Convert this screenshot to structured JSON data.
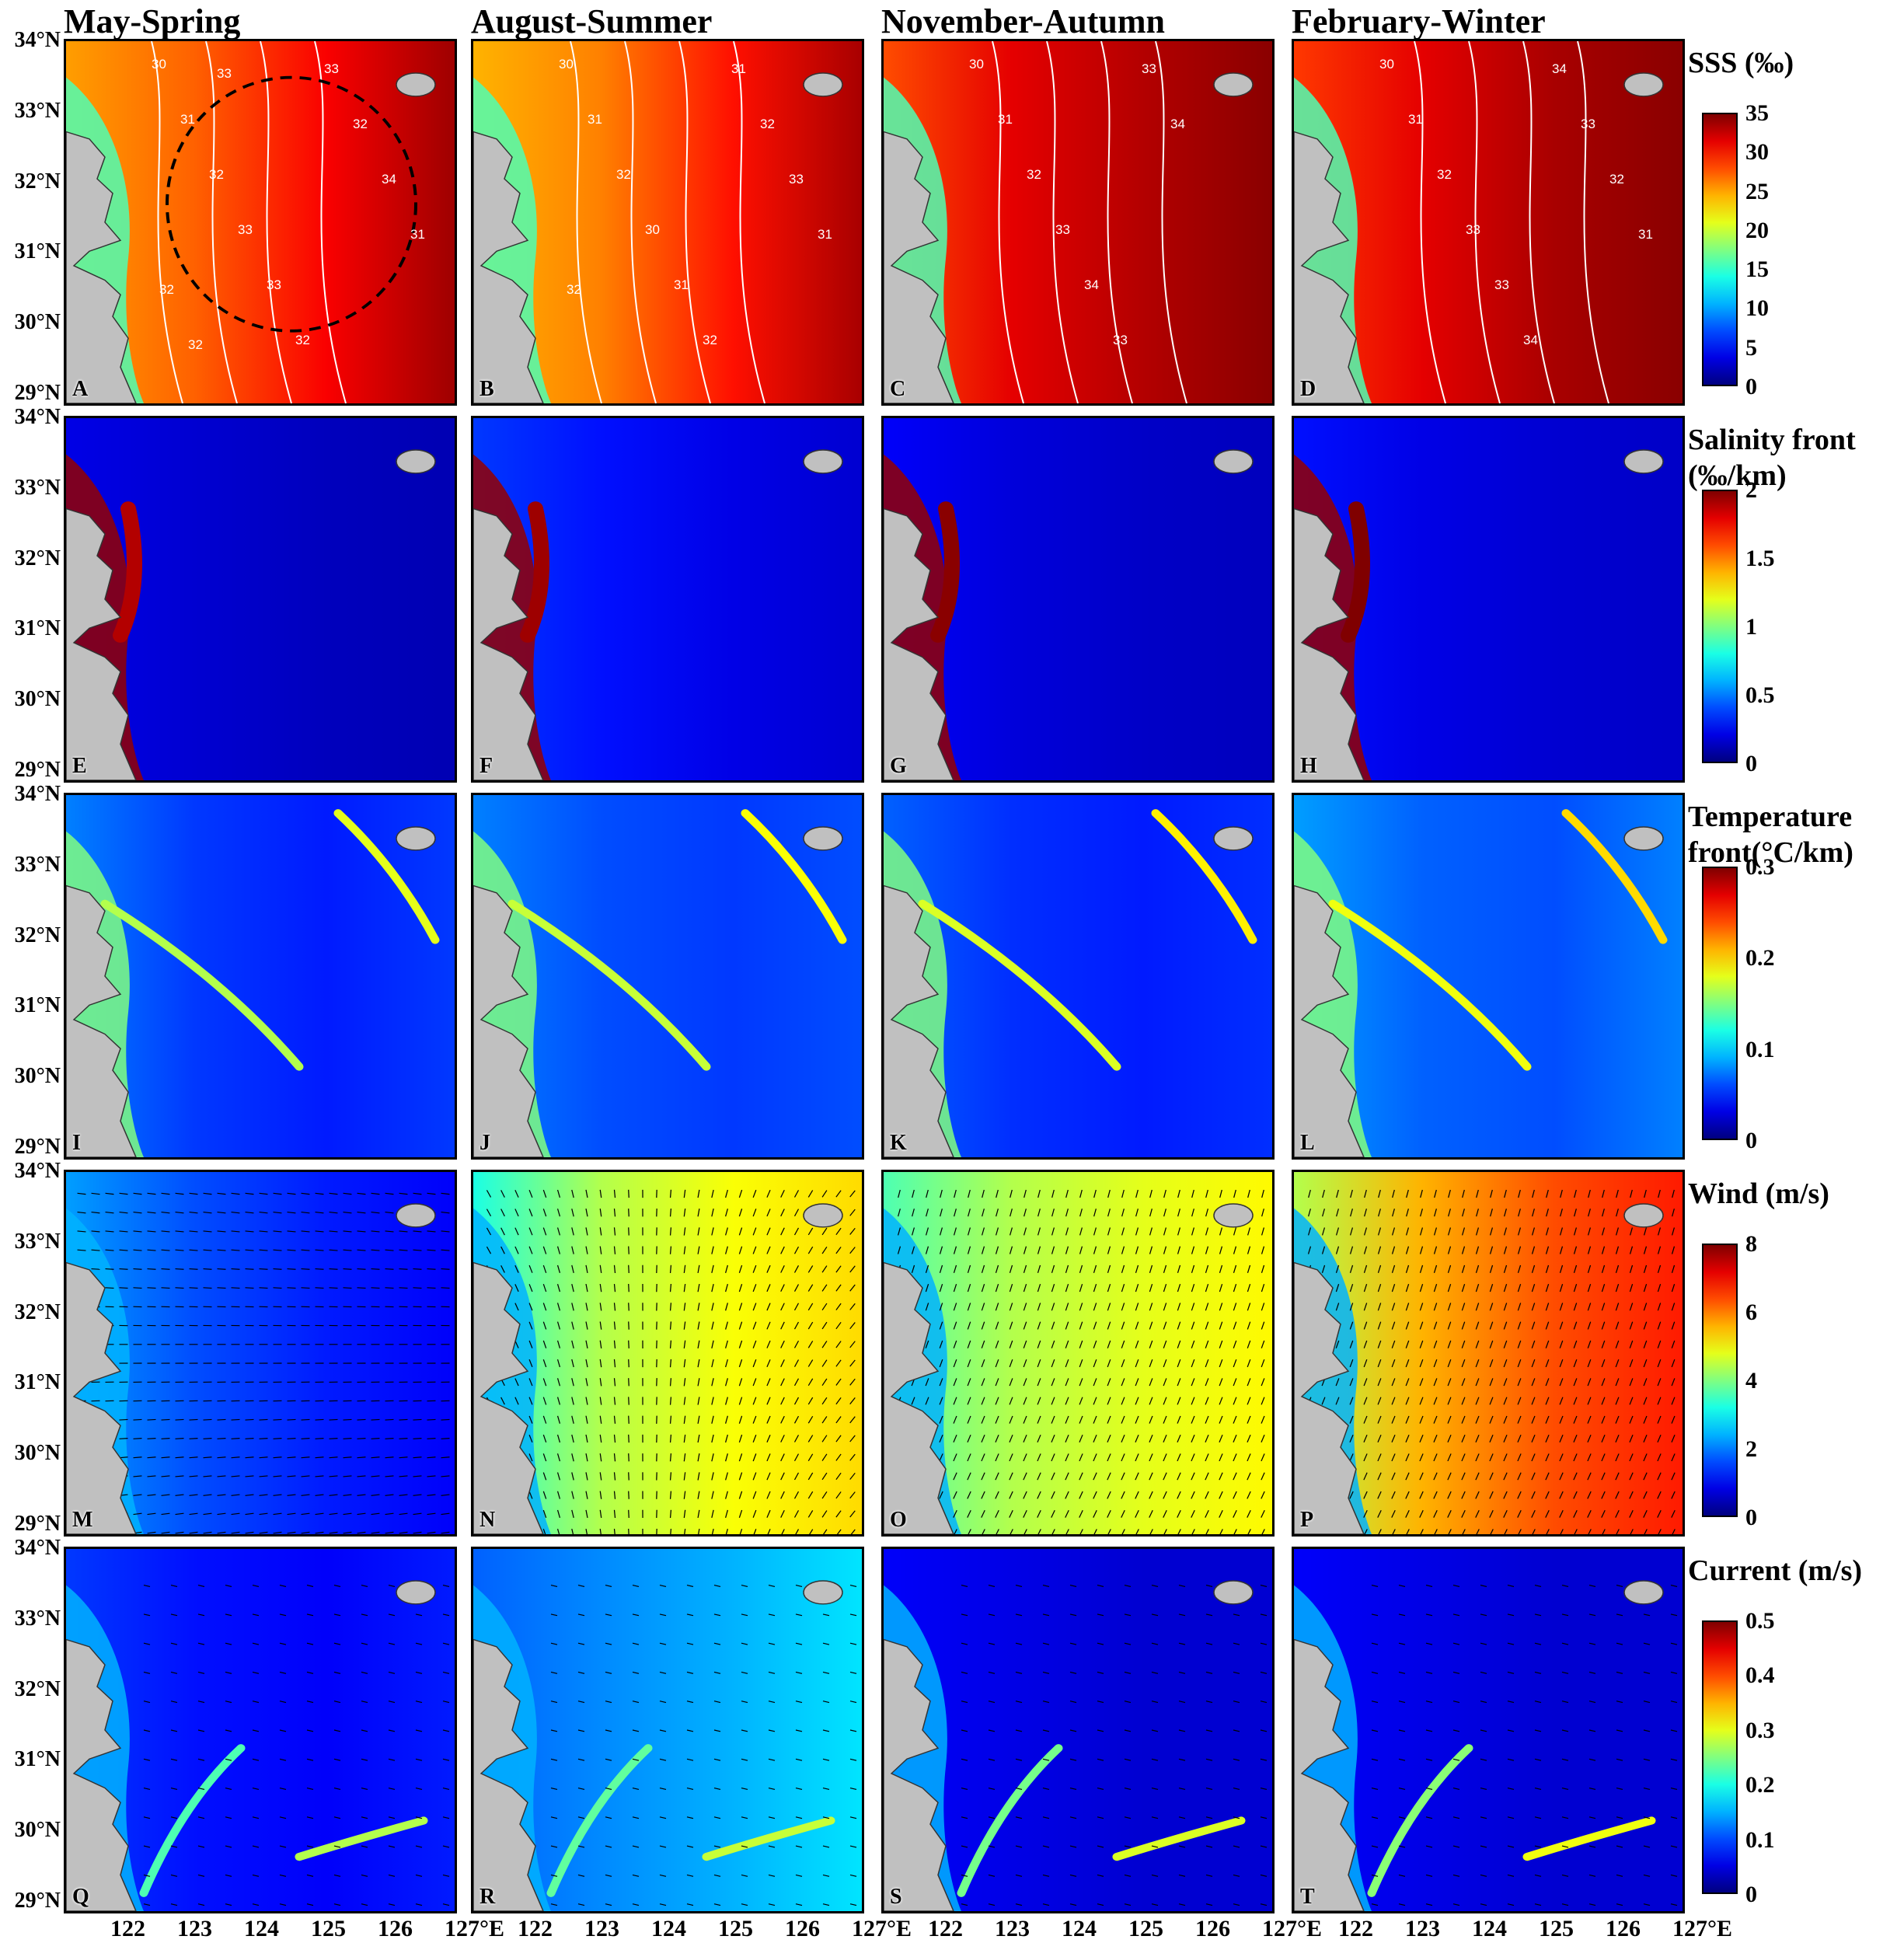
{
  "columns": [
    "May-Spring",
    "August-Summer",
    "November-Autumn",
    "February-Winter"
  ],
  "panel_letters": [
    [
      "A",
      "B",
      "C",
      "D"
    ],
    [
      "E",
      "F",
      "G",
      "H"
    ],
    [
      "I",
      "J",
      "K",
      "L"
    ],
    [
      "M",
      "N",
      "O",
      "P"
    ],
    [
      "Q",
      "R",
      "S",
      "T"
    ]
  ],
  "lat_labels": [
    "34°N",
    "33°N",
    "32°N",
    "31°N",
    "30°N",
    "29°N"
  ],
  "lon_labels": [
    "122",
    "123",
    "124",
    "125",
    "126",
    "127°E"
  ],
  "rows": [
    {
      "variable": "SSS",
      "title": "SSS (‰)",
      "ticks": [
        "35",
        "30",
        "25",
        "20",
        "15",
        "10",
        "5",
        "0"
      ],
      "colormap": "jet"
    },
    {
      "variable": "Salinity front",
      "title": "Salinity front (‰/km)",
      "ticks": [
        "2",
        "1.5",
        "1",
        "0.5",
        "0"
      ],
      "colormap": "jet"
    },
    {
      "variable": "Temperature front",
      "title": "Temperature front(°C/km)",
      "ticks": [
        "0.3",
        "0.2",
        "0.1",
        "0"
      ],
      "colormap": "jet"
    },
    {
      "variable": "Wind",
      "title": "Wind (m/s)",
      "ticks": [
        "8",
        "6",
        "4",
        "2",
        "0"
      ],
      "colormap": "jet"
    },
    {
      "variable": "Current",
      "title": "Current (m/s)",
      "ticks": [
        "0.5",
        "0.4",
        "0.3",
        "0.2",
        "0.1",
        "0"
      ],
      "colormap": "jet"
    }
  ],
  "sss_contour_labels": [
    [
      "30",
      "31",
      "32",
      "33",
      "33",
      "32",
      "33",
      "32",
      "34",
      "31",
      "32",
      "32",
      "33"
    ],
    [
      "30",
      "31",
      "32",
      "30",
      "31",
      "32",
      "31",
      "32",
      "33",
      "31",
      "32"
    ],
    [
      "30",
      "31",
      "32",
      "33",
      "34",
      "33",
      "33",
      "34"
    ],
    [
      "30",
      "31",
      "32",
      "33",
      "33",
      "34",
      "34",
      "33",
      "32",
      "31"
    ]
  ],
  "land_color": "#c0c0c0",
  "accent_colors": {
    "low": "#00008f",
    "mid": "#7fff7f",
    "high": "#800000"
  }
}
